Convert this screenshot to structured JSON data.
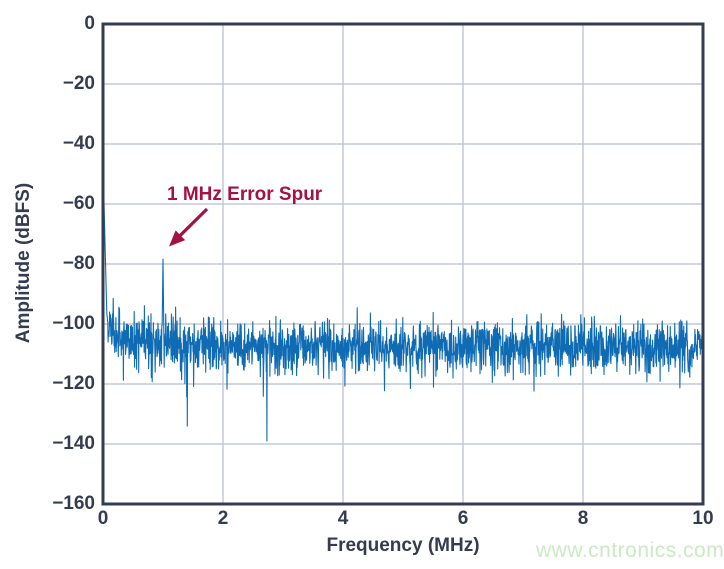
{
  "watermark": {
    "text": "www.cntronics.com",
    "color": "#cbe9c5"
  },
  "colors": {
    "background": "#ffffff",
    "axis": "#333c50",
    "grid": "#c3c8d3",
    "line": "#0f6cb4",
    "annotation": "#a31240"
  },
  "chart_data": {
    "type": "line",
    "title": "",
    "xlabel": "Frequency (MHz)",
    "ylabel": "Amplitude (dBFS)",
    "xlim": [
      0,
      10
    ],
    "ylim": [
      -160,
      0
    ],
    "x_ticks": [
      0,
      2,
      4,
      6,
      8,
      10
    ],
    "y_ticks": [
      0,
      -20,
      -40,
      -60,
      -80,
      -100,
      -120,
      -140,
      -160
    ],
    "grid": true,
    "legend": false,
    "annotation": {
      "text": "1 MHz Error Spur",
      "target_freq_mhz": 1.0,
      "target_amplitude_dbfs": -77.5,
      "color": "#a31240"
    },
    "features": {
      "dc_peak": {
        "freq_mhz": 0.0,
        "amplitude_dbfs": -46
      },
      "error_spur": {
        "freq_mhz": 1.0,
        "amplitude_dbfs": -77.5
      },
      "noise_floor_mean_dbfs": -107.5,
      "noise_floor_peak_range_dbfs": [
        -97,
        -130
      ],
      "deep_null": {
        "freq_mhz": 2.73,
        "amplitude_dbfs": -139
      }
    },
    "synthesis": {
      "n_points": 2000,
      "seed": 1234,
      "noise_mean_dbfs": -107.5,
      "noise_std_db": 4.4,
      "low_freq_elevation_db": 8,
      "low_freq_decay_mhz": 0.4,
      "dip_probability": 0.013,
      "dip_extra_db_max": 22,
      "dc_peak": {
        "freq_mhz": 0.0,
        "amplitude_dbfs": -46,
        "rolloff_db_per_mhz": 800
      },
      "spur": {
        "freq_mhz": 1.0,
        "amplitude_dbfs": -77.5,
        "rolloff_db_per_mhz": 1800
      },
      "deep_null": {
        "freq_mhz": 2.73,
        "amplitude_dbfs": -139
      },
      "min_dbfs": -157
    }
  }
}
